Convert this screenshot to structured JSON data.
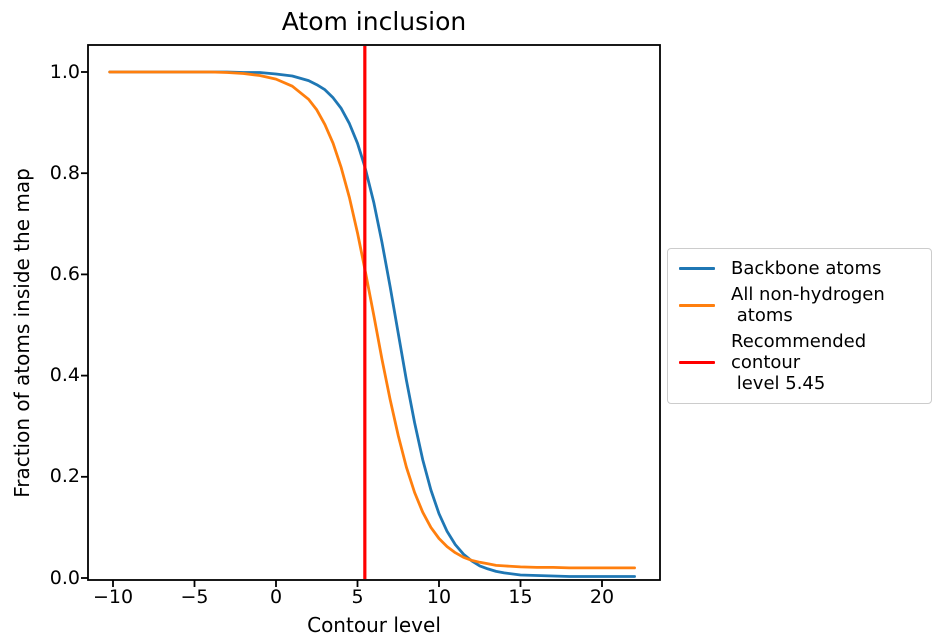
{
  "title": "Atom inclusion",
  "xlabel": "Contour level",
  "ylabel": "Fraction of atoms inside the map",
  "x_tick_labels": [
    "−10",
    "−5",
    "0",
    "5",
    "10",
    "15",
    "20"
  ],
  "y_tick_labels": [
    "0.0",
    "0.2",
    "0.4",
    "0.6",
    "0.8",
    "1.0"
  ],
  "colors": {
    "backbone": "#1f77b4",
    "all_atoms": "#ff7f0e",
    "recommended_line": "#ff0000",
    "spine": "#000000",
    "legend_border": "#cccccc"
  },
  "legend": {
    "entries": [
      {
        "label": "Backbone atoms",
        "color": "#1f77b4"
      },
      {
        "label": "All non-hydrogen\n atoms",
        "color": "#ff7f0e"
      },
      {
        "label": "Recommended contour\n level 5.45",
        "color": "#ff0000"
      }
    ]
  },
  "chart_data": {
    "type": "line",
    "title": "Atom inclusion",
    "xlabel": "Contour level",
    "ylabel": "Fraction of atoms inside the map",
    "xlim": [
      -11.5,
      23.6
    ],
    "ylim": [
      -0.004,
      1.053
    ],
    "x_tick_values": [
      -10,
      -5,
      0,
      5,
      10,
      15,
      20
    ],
    "y_tick_values": [
      0.0,
      0.2,
      0.4,
      0.6,
      0.8,
      1.0
    ],
    "grid": false,
    "legend_position": "outside-right",
    "series": [
      {
        "name": "Backbone atoms",
        "color": "#1f77b4",
        "x": [
          -10.2,
          -9,
          -8,
          -7,
          -6,
          -5,
          -4,
          -3,
          -2,
          -1,
          0,
          1,
          2,
          2.5,
          3,
          3.5,
          4,
          4.5,
          5,
          5.45,
          5.5,
          6,
          6.5,
          7,
          7.5,
          8,
          8.5,
          9,
          9.5,
          10,
          10.5,
          11,
          11.5,
          12,
          12.5,
          13,
          13.5,
          14,
          15,
          16,
          17,
          18,
          19,
          20,
          21,
          22
        ],
        "y": [
          1.0,
          1.0,
          1.0,
          1.0,
          1.0,
          1.0,
          1.0,
          1.0,
          0.999,
          0.999,
          0.996,
          0.992,
          0.983,
          0.975,
          0.965,
          0.949,
          0.928,
          0.898,
          0.859,
          0.813,
          0.807,
          0.742,
          0.664,
          0.576,
          0.483,
          0.391,
          0.307,
          0.234,
          0.174,
          0.127,
          0.092,
          0.066,
          0.047,
          0.034,
          0.024,
          0.018,
          0.013,
          0.01,
          0.006,
          0.005,
          0.004,
          0.003,
          0.003,
          0.003,
          0.003,
          0.003
        ]
      },
      {
        "name": "All non-hydrogen atoms",
        "color": "#ff7f0e",
        "x": [
          -10.2,
          -9,
          -8,
          -7,
          -6,
          -5,
          -4,
          -3,
          -2,
          -1,
          0,
          1,
          2,
          2.5,
          3,
          3.5,
          4,
          4.5,
          5,
          5.45,
          5.5,
          6,
          6.5,
          7,
          7.5,
          8,
          8.5,
          9,
          9.5,
          10,
          10.5,
          11,
          11.5,
          12,
          12.5,
          13,
          13.5,
          14,
          15,
          16,
          17,
          18,
          19,
          20,
          21,
          22
        ],
        "y": [
          1.0,
          1.0,
          1.0,
          1.0,
          1.0,
          1.0,
          1.0,
          0.999,
          0.997,
          0.993,
          0.986,
          0.972,
          0.946,
          0.925,
          0.896,
          0.859,
          0.811,
          0.752,
          0.682,
          0.611,
          0.603,
          0.519,
          0.433,
          0.353,
          0.281,
          0.219,
          0.169,
          0.13,
          0.1,
          0.078,
          0.062,
          0.05,
          0.041,
          0.035,
          0.031,
          0.028,
          0.025,
          0.024,
          0.022,
          0.021,
          0.021,
          0.02,
          0.02,
          0.02,
          0.02,
          0.02
        ]
      }
    ],
    "vline": {
      "x": 5.45,
      "color": "#ff0000",
      "label": "Recommended contour level 5.45"
    }
  }
}
